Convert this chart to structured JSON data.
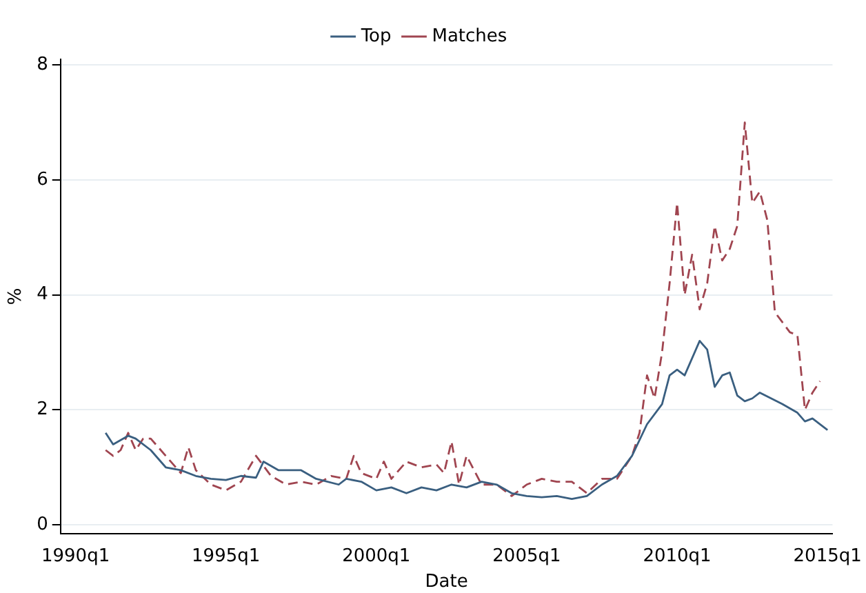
{
  "chart_data": {
    "type": "line",
    "xlabel": "Date",
    "ylabel": "%",
    "xlim": [
      "1989-07",
      "2015-03"
    ],
    "ylim": [
      -0.15,
      8.1
    ],
    "xticks": [
      {
        "value": "1990-01",
        "label": "1990q1"
      },
      {
        "value": "1995-01",
        "label": "1995q1"
      },
      {
        "value": "2000-01",
        "label": "2000q1"
      },
      {
        "value": "2005-01",
        "label": "2005q1"
      },
      {
        "value": "2010-01",
        "label": "2010q1"
      },
      {
        "value": "2015-01",
        "label": "2015q1"
      }
    ],
    "yticks": [
      0,
      2,
      4,
      6,
      8
    ],
    "grid": "y",
    "legend": "top",
    "marker": "none",
    "series": [
      {
        "name": "Top",
        "color": "#3a5f80",
        "line_style": "solid",
        "x": [
          "1991-01",
          "1991-04",
          "1991-10",
          "1992-01",
          "1992-07",
          "1993-01",
          "1993-07",
          "1994-01",
          "1994-07",
          "1995-01",
          "1995-07",
          "1996-01",
          "1996-04",
          "1996-10",
          "1997-07",
          "1998-01",
          "1998-10",
          "1999-01",
          "1999-07",
          "2000-01",
          "2000-07",
          "2001-01",
          "2001-07",
          "2002-01",
          "2002-07",
          "2003-01",
          "2003-07",
          "2004-01",
          "2004-07",
          "2005-01",
          "2005-07",
          "2006-01",
          "2006-07",
          "2007-01",
          "2007-07",
          "2008-01",
          "2008-07",
          "2009-01",
          "2009-07",
          "2009-10",
          "2010-01",
          "2010-04",
          "2010-10",
          "2011-01",
          "2011-04",
          "2011-07",
          "2011-10",
          "2012-01",
          "2012-04",
          "2012-07",
          "2012-10",
          "2013-07",
          "2014-01",
          "2014-04",
          "2014-07",
          "2015-01"
        ],
        "values": [
          1.6,
          1.4,
          1.55,
          1.5,
          1.3,
          1.0,
          0.95,
          0.85,
          0.8,
          0.78,
          0.85,
          0.82,
          1.1,
          0.95,
          0.95,
          0.8,
          0.7,
          0.8,
          0.75,
          0.6,
          0.65,
          0.55,
          0.65,
          0.6,
          0.7,
          0.65,
          0.75,
          0.7,
          0.55,
          0.5,
          0.48,
          0.5,
          0.45,
          0.5,
          0.7,
          0.85,
          1.2,
          1.75,
          2.1,
          2.6,
          2.7,
          2.6,
          3.2,
          3.05,
          2.4,
          2.6,
          2.65,
          2.25,
          2.15,
          2.2,
          2.3,
          2.1,
          1.95,
          1.8,
          1.85,
          1.65
        ]
      },
      {
        "name": "Matches",
        "color": "#a04550",
        "line_style": "dashed",
        "x": [
          "1991-01",
          "1991-04",
          "1991-07",
          "1991-10",
          "1992-01",
          "1992-04",
          "1992-07",
          "1993-01",
          "1993-07",
          "1993-10",
          "1994-01",
          "1994-07",
          "1995-01",
          "1995-07",
          "1996-01",
          "1996-07",
          "1997-01",
          "1997-07",
          "1998-01",
          "1998-07",
          "1999-01",
          "1999-04",
          "1999-07",
          "2000-01",
          "2000-04",
          "2000-07",
          "2001-01",
          "2001-07",
          "2002-01",
          "2002-04",
          "2002-07",
          "2002-10",
          "2003-01",
          "2003-07",
          "2004-01",
          "2004-07",
          "2005-01",
          "2005-07",
          "2006-01",
          "2006-07",
          "2007-01",
          "2007-07",
          "2008-01",
          "2008-07",
          "2008-10",
          "2009-01",
          "2009-04",
          "2009-07",
          "2009-10",
          "2010-01",
          "2010-04",
          "2010-07",
          "2010-10",
          "2011-01",
          "2011-04",
          "2011-07",
          "2011-10",
          "2012-01",
          "2012-04",
          "2012-07",
          "2012-10",
          "2013-01",
          "2013-04",
          "2013-10",
          "2014-01",
          "2014-04",
          "2014-07",
          "2014-10"
        ],
        "values": [
          1.3,
          1.2,
          1.3,
          1.6,
          1.3,
          1.5,
          1.5,
          1.2,
          0.9,
          1.35,
          0.95,
          0.7,
          0.6,
          0.75,
          1.2,
          0.85,
          0.7,
          0.75,
          0.7,
          0.85,
          0.8,
          1.2,
          0.9,
          0.8,
          1.1,
          0.8,
          1.1,
          1.0,
          1.05,
          0.9,
          1.45,
          0.7,
          1.2,
          0.7,
          0.7,
          0.5,
          0.7,
          0.8,
          0.75,
          0.75,
          0.55,
          0.8,
          0.8,
          1.2,
          1.6,
          2.6,
          2.2,
          3.0,
          4.2,
          5.6,
          4.0,
          4.7,
          3.75,
          4.2,
          5.2,
          4.6,
          4.8,
          5.2,
          7.0,
          5.6,
          5.8,
          5.3,
          3.7,
          3.35,
          3.3,
          2.0,
          2.3,
          2.5
        ]
      }
    ]
  }
}
